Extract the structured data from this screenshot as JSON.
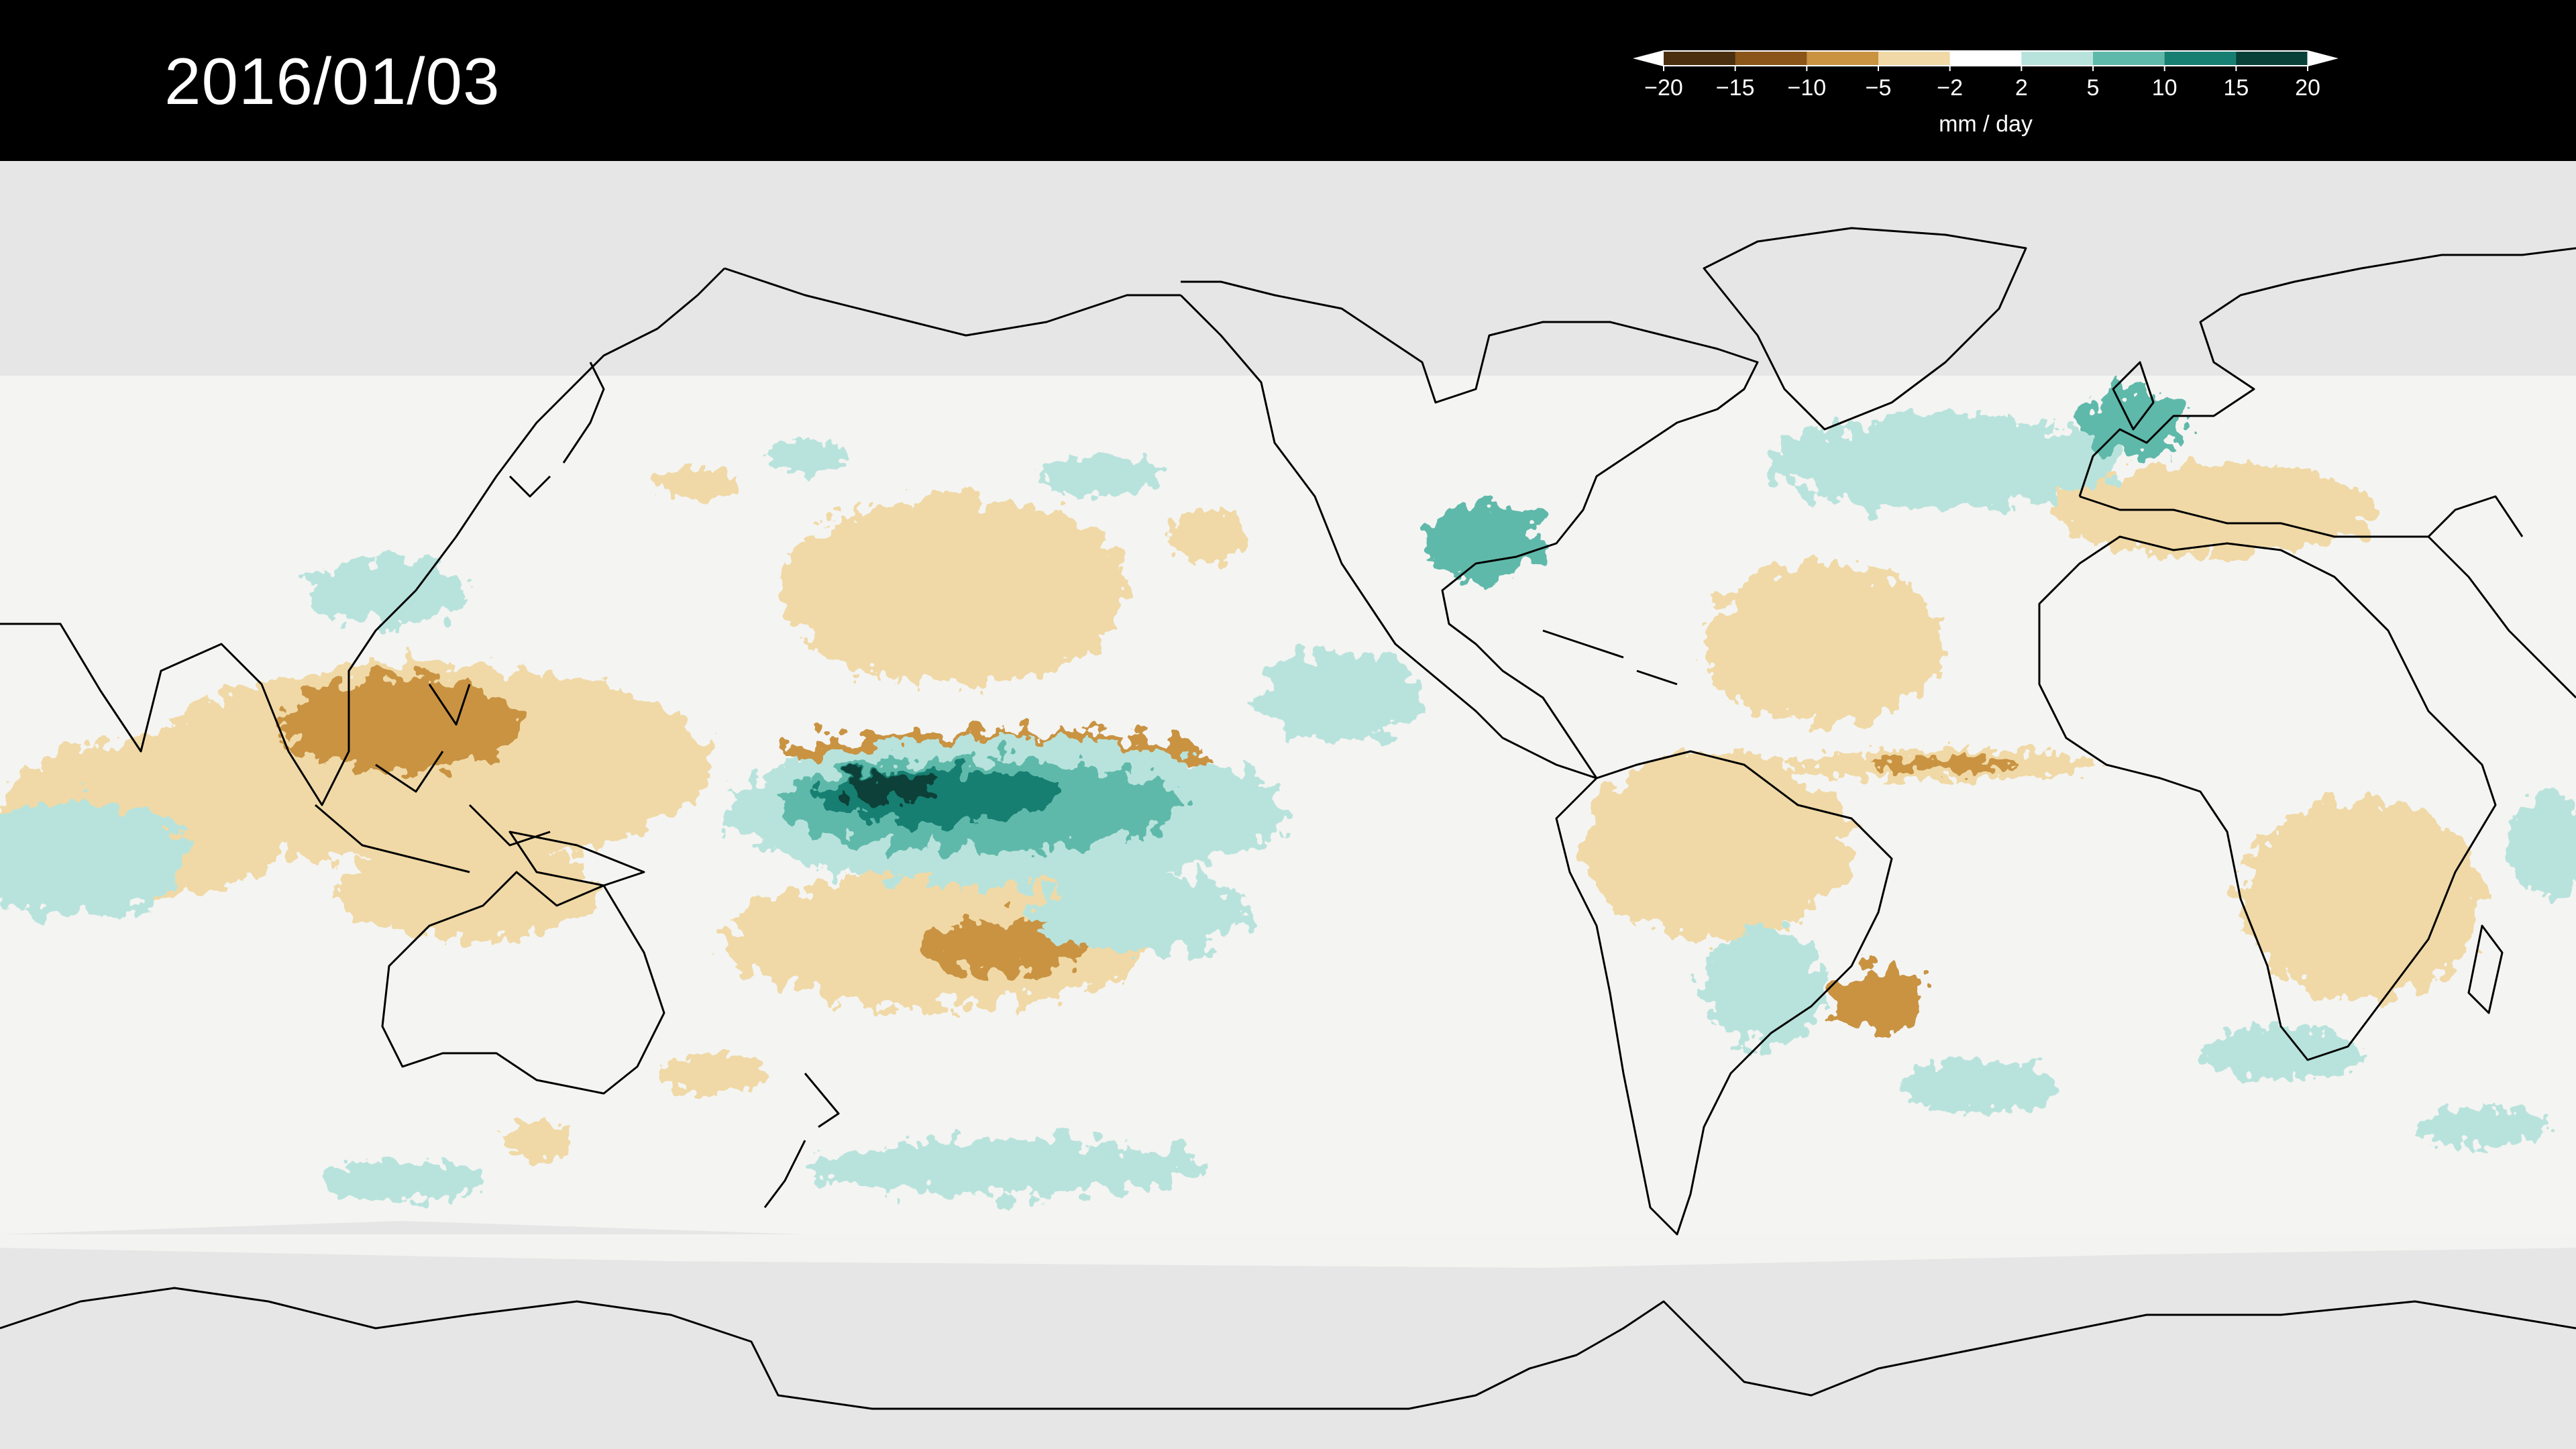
{
  "date": "2016/01/03",
  "colorbar": {
    "unit": "mm / day",
    "ticks": [
      "−20",
      "−15",
      "−10",
      "−5",
      "−2",
      "2",
      "5",
      "10",
      "15",
      "20"
    ],
    "colors": [
      "#4a2f0e",
      "#8a5518",
      "#c99342",
      "#f0d9a6",
      "#ffffff",
      "#b8e3dc",
      "#5fb9aa",
      "#167f71",
      "#083f37"
    ]
  },
  "map": {
    "projection": "equirectangular",
    "central_longitude": 180,
    "ocean_color": "#f4f4f2",
    "no_data_color": "#e6e6e6",
    "coast_color": "#000000"
  }
}
